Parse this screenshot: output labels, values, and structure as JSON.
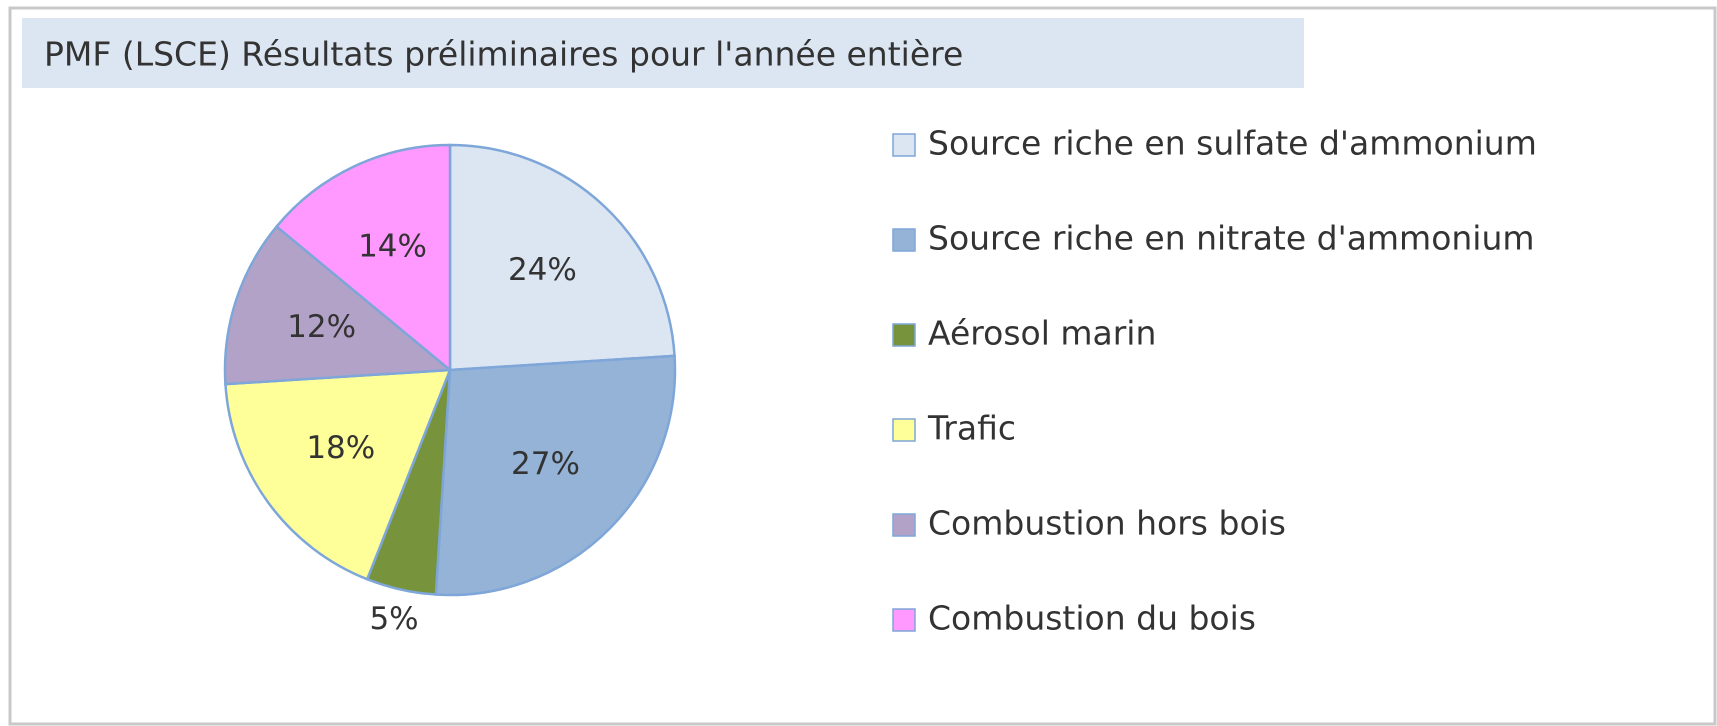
{
  "chart_data": {
    "type": "pie",
    "title": "PMF (LSCE) Résultats préliminaires pour l'année entière",
    "categories": [
      "Source riche en sulfate d'ammonium",
      "Source riche en nitrate d'ammonium",
      "Aérosol marin",
      "Trafic",
      "Combustion hors bois",
      "Combustion du bois"
    ],
    "values": [
      24,
      27,
      5,
      18,
      12,
      14
    ],
    "value_labels": [
      "24%",
      "27%",
      "5%",
      "18%",
      "12%",
      "14%"
    ],
    "colors": [
      "#dce6f2",
      "#95b3d7",
      "#77933c",
      "#ffff99",
      "#b3a2c7",
      "#ff99ff"
    ],
    "legend": "right"
  }
}
